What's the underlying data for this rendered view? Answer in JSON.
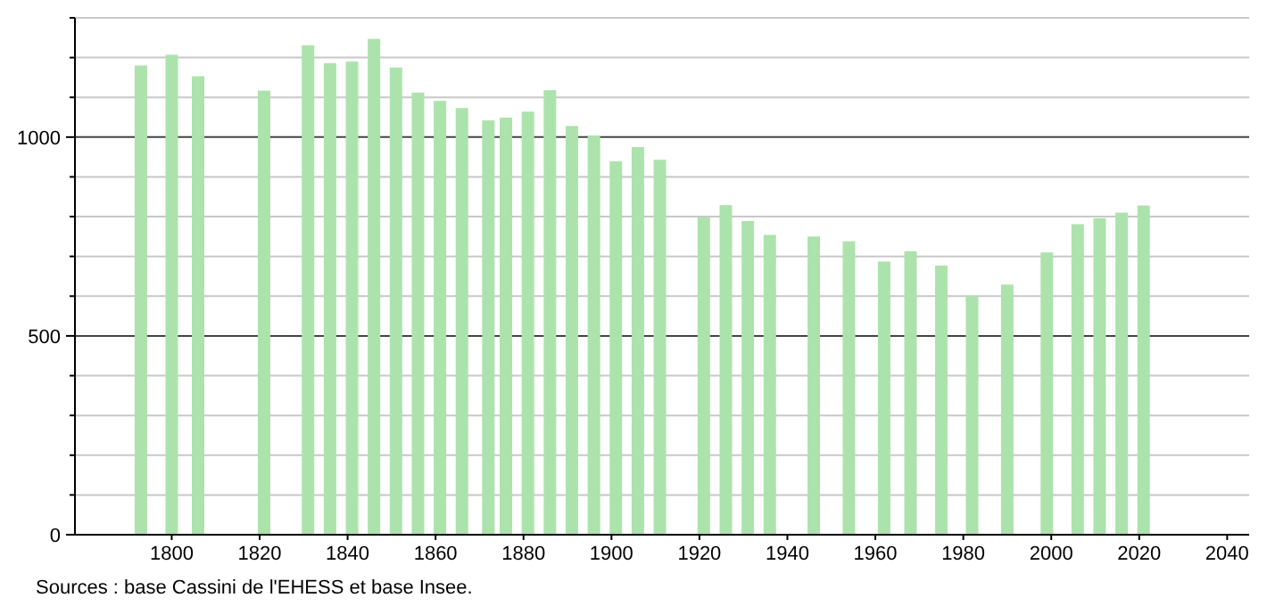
{
  "chart_data": {
    "type": "bar",
    "annotations": [
      "Sources : base Cassini de l'EHESS et base Insee."
    ],
    "x": [
      1793,
      1800,
      1806,
      1821,
      1831,
      1836,
      1841,
      1846,
      1851,
      1856,
      1861,
      1866,
      1872,
      1876,
      1881,
      1886,
      1891,
      1896,
      1901,
      1906,
      1911,
      1921,
      1926,
      1931,
      1936,
      1946,
      1954,
      1962,
      1968,
      1975,
      1982,
      1990,
      1999,
      2006,
      2011,
      2016,
      2021
    ],
    "values": [
      1180,
      1207,
      1153,
      1117,
      1231,
      1186,
      1190,
      1247,
      1175,
      1112,
      1091,
      1073,
      1042,
      1049,
      1064,
      1118,
      1028,
      1004,
      939,
      975,
      943,
      798,
      829,
      789,
      754,
      750,
      738,
      687,
      713,
      677,
      600,
      629,
      710,
      781,
      796,
      810,
      828
    ],
    "color": "#ace3ac",
    "xlim": [
      1778,
      2045
    ],
    "xticks": [
      1800,
      1820,
      1840,
      1860,
      1880,
      1900,
      1920,
      1940,
      1960,
      1980,
      2000,
      2020,
      2040
    ],
    "ylim": [
      0,
      1300
    ],
    "yticks": [
      0,
      {
        "value": 100,
        "label": null
      },
      {
        "value": 200,
        "label": null
      },
      {
        "value": 300,
        "label": null
      },
      {
        "value": 400,
        "label": null
      },
      500,
      {
        "value": 600,
        "label": null
      },
      {
        "value": 700,
        "label": null
      },
      {
        "value": 800,
        "label": null
      },
      {
        "value": 900,
        "label": null
      },
      1000,
      {
        "value": 1100,
        "label": null
      },
      {
        "value": 1200,
        "label": null
      },
      {
        "value": 1300,
        "label": null
      }
    ],
    "grid": "y"
  }
}
